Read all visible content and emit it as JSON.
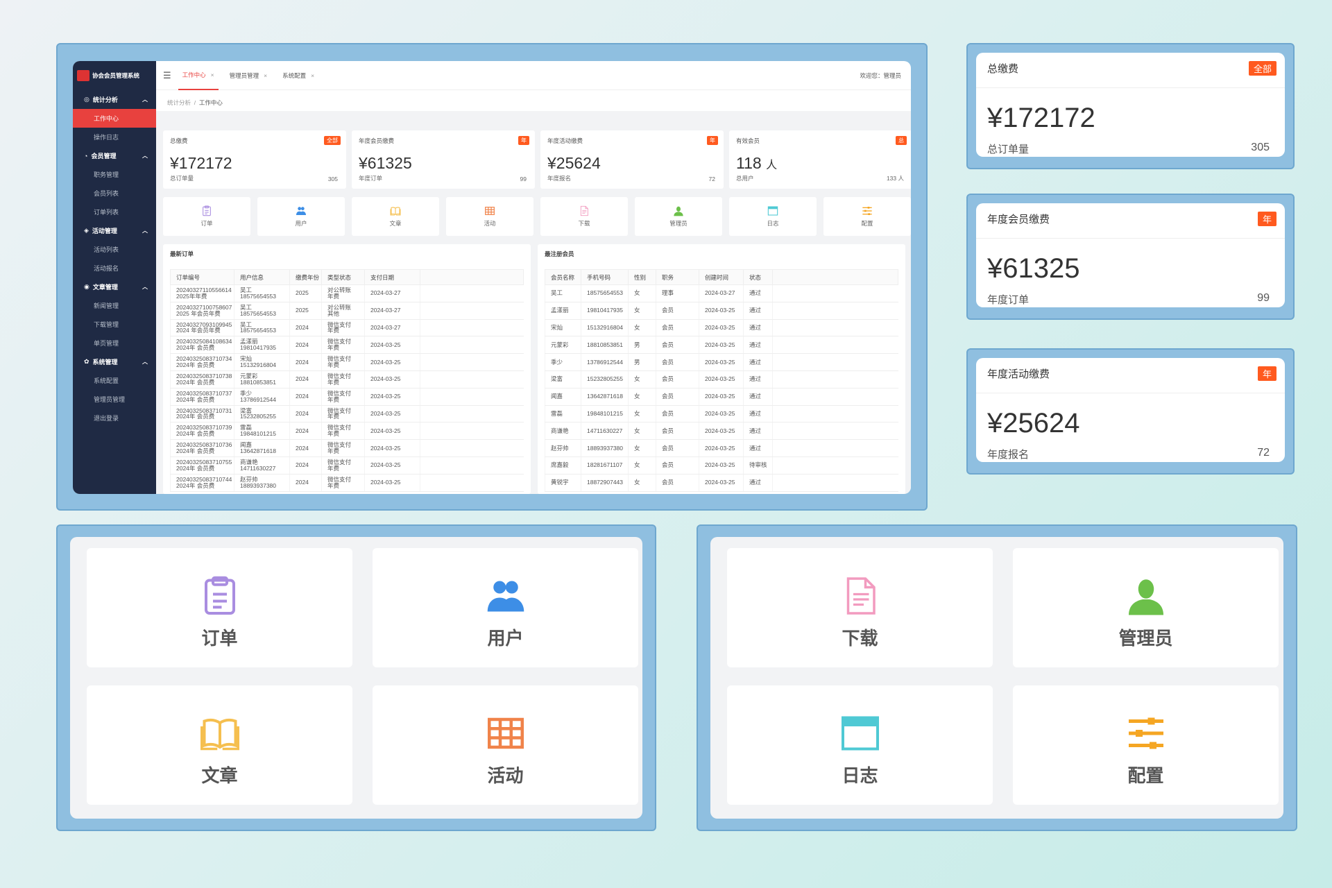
{
  "app": {
    "title": "协会会员管理系统"
  },
  "sidebar": {
    "groups": [
      {
        "label": "统计分析",
        "items": [
          {
            "label": "工作中心",
            "active": true
          },
          {
            "label": "操作日志"
          }
        ]
      },
      {
        "label": "会员管理",
        "items": [
          {
            "label": "职务管理"
          },
          {
            "label": "会员列表"
          },
          {
            "label": "订单列表"
          }
        ]
      },
      {
        "label": "活动管理",
        "items": [
          {
            "label": "活动列表"
          },
          {
            "label": "活动报名"
          }
        ]
      },
      {
        "label": "文章管理",
        "items": [
          {
            "label": "新闻管理"
          },
          {
            "label": "下载管理"
          },
          {
            "label": "单页管理"
          }
        ]
      },
      {
        "label": "系统管理",
        "items": [
          {
            "label": "系统配置"
          },
          {
            "label": "管理员管理"
          },
          {
            "label": "退出登录"
          }
        ]
      }
    ]
  },
  "tabs": [
    {
      "label": "工作中心",
      "active": true
    },
    {
      "label": "管理员管理"
    },
    {
      "label": "系统配置"
    }
  ],
  "header": {
    "welcome": "欢迎您：管理员"
  },
  "breadcrumb": {
    "parent": "统计分析",
    "separator": "/",
    "current": "工作中心"
  },
  "stats": [
    {
      "title": "总缴费",
      "badge": "全部",
      "value": "¥172172",
      "sub_label": "总订单量",
      "sub_value": "305"
    },
    {
      "title": "年度会员缴费",
      "badge": "年",
      "value": "¥61325",
      "sub_label": "年度订单",
      "sub_value": "99"
    },
    {
      "title": "年度活动缴费",
      "badge": "年",
      "value": "¥25624",
      "sub_label": "年度报名",
      "sub_value": "72"
    },
    {
      "title": "有效会员",
      "badge": "总",
      "value": "118",
      "value_unit": "人",
      "sub_label": "总用户",
      "sub_value": "133 人"
    }
  ],
  "quick_links": [
    {
      "label": "订单",
      "icon": "clipboard-icon",
      "color": "#a98de0"
    },
    {
      "label": "用户",
      "icon": "users-icon",
      "color": "#3d8ee6"
    },
    {
      "label": "文章",
      "icon": "book-icon",
      "color": "#f5bf4f"
    },
    {
      "label": "活动",
      "icon": "grid-icon",
      "color": "#f0834a"
    },
    {
      "label": "下载",
      "icon": "document-icon",
      "color": "#f29bbf"
    },
    {
      "label": "管理员",
      "icon": "person-icon",
      "color": "#6cc04a"
    },
    {
      "label": "日志",
      "icon": "window-icon",
      "color": "#4fc9d4"
    },
    {
      "label": "配置",
      "icon": "sliders-icon",
      "color": "#f5a623"
    }
  ],
  "orders": {
    "title": "最新订单",
    "columns": [
      "订单编号",
      "用户信息",
      "缴费年份",
      "类型状态",
      "支付日期"
    ],
    "rows": [
      {
        "id": "20240327110556614",
        "id_sub": "2025年年费",
        "user": "吴工",
        "phone": "18575654553",
        "year": "2025",
        "type": "对公转账",
        "type_sub": "年费",
        "date": "2024-03-27"
      },
      {
        "id": "20240327100758607",
        "id_sub": "2025 年会员年费",
        "user": "吴工",
        "phone": "18575654553",
        "year": "2025",
        "type": "对公转账",
        "type_sub": "其他",
        "date": "2024-03-27"
      },
      {
        "id": "20240327093109945",
        "id_sub": "2024 年会员年费",
        "user": "吴工",
        "phone": "18575654553",
        "year": "2024",
        "type": "微信支付",
        "type_sub": "年费",
        "date": "2024-03-27"
      },
      {
        "id": "20240325084108634",
        "id_sub": "2024年 会员费",
        "user": "孟漾丽",
        "phone": "19810417935",
        "year": "2024",
        "type": "微信支付",
        "type_sub": "年费",
        "date": "2024-03-25"
      },
      {
        "id": "20240325083710734",
        "id_sub": "2024年 会员费",
        "user": "宋灿",
        "phone": "15132916804",
        "year": "2024",
        "type": "微信支付",
        "type_sub": "年费",
        "date": "2024-03-25"
      },
      {
        "id": "20240325083710738",
        "id_sub": "2024年 会员费",
        "user": "元蒙彩",
        "phone": "18810853851",
        "year": "2024",
        "type": "微信支付",
        "type_sub": "年费",
        "date": "2024-03-25"
      },
      {
        "id": "20240325083710737",
        "id_sub": "2024年 会员费",
        "user": "季少",
        "phone": "13786912544",
        "year": "2024",
        "type": "微信支付",
        "type_sub": "年费",
        "date": "2024-03-25"
      },
      {
        "id": "20240325083710731",
        "id_sub": "2024年 会员费",
        "user": "梁富",
        "phone": "15232805255",
        "year": "2024",
        "type": "微信支付",
        "type_sub": "年费",
        "date": "2024-03-25"
      },
      {
        "id": "20240325083710739",
        "id_sub": "2024年 会员费",
        "user": "雷磊",
        "phone": "19848101215",
        "year": "2024",
        "type": "微信支付",
        "type_sub": "年费",
        "date": "2024-03-25"
      },
      {
        "id": "20240325083710736",
        "id_sub": "2024年 会员费",
        "user": "闻嘉",
        "phone": "13642871618",
        "year": "2024",
        "type": "微信支付",
        "type_sub": "年费",
        "date": "2024-03-25"
      },
      {
        "id": "20240325083710755",
        "id_sub": "2024年 会员费",
        "user": "商谦艳",
        "phone": "14711630227",
        "year": "2024",
        "type": "微信支付",
        "type_sub": "年费",
        "date": "2024-03-25"
      },
      {
        "id": "20240325083710744",
        "id_sub": "2024年 会员费",
        "user": "赵芬帅",
        "phone": "18893937380",
        "year": "2024",
        "type": "微信支付",
        "type_sub": "年费",
        "date": "2024-03-25"
      }
    ]
  },
  "members": {
    "title": "最注册会员",
    "columns": [
      "会员名称",
      "手机号码",
      "性别",
      "职务",
      "创建时间",
      "状态"
    ],
    "rows": [
      {
        "name": "吴工",
        "phone": "18575654553",
        "gender": "女",
        "role": "理事",
        "created": "2024-03-27",
        "status": "通过"
      },
      {
        "name": "孟漾丽",
        "phone": "19810417935",
        "gender": "女",
        "role": "会员",
        "created": "2024-03-25",
        "status": "通过"
      },
      {
        "name": "宋灿",
        "phone": "15132916804",
        "gender": "女",
        "role": "会员",
        "created": "2024-03-25",
        "status": "通过"
      },
      {
        "name": "元蒙彩",
        "phone": "18810853851",
        "gender": "男",
        "role": "会员",
        "created": "2024-03-25",
        "status": "通过"
      },
      {
        "name": "季少",
        "phone": "13786912544",
        "gender": "男",
        "role": "会员",
        "created": "2024-03-25",
        "status": "通过"
      },
      {
        "name": "梁富",
        "phone": "15232805255",
        "gender": "女",
        "role": "会员",
        "created": "2024-03-25",
        "status": "通过"
      },
      {
        "name": "闻嘉",
        "phone": "13642871618",
        "gender": "女",
        "role": "会员",
        "created": "2024-03-25",
        "status": "通过"
      },
      {
        "name": "雷磊",
        "phone": "19848101215",
        "gender": "女",
        "role": "会员",
        "created": "2024-03-25",
        "status": "通过"
      },
      {
        "name": "商谦艳",
        "phone": "14711630227",
        "gender": "女",
        "role": "会员",
        "created": "2024-03-25",
        "status": "通过"
      },
      {
        "name": "赵芬帅",
        "phone": "18893937380",
        "gender": "女",
        "role": "会员",
        "created": "2024-03-25",
        "status": "通过"
      },
      {
        "name": "席嘉毅",
        "phone": "18281671107",
        "gender": "女",
        "role": "会员",
        "created": "2024-03-25",
        "status": "待审核"
      },
      {
        "name": "黄锐宇",
        "phone": "18872907443",
        "gender": "女",
        "role": "会员",
        "created": "2024-03-25",
        "status": "通过"
      }
    ]
  },
  "colors": {
    "accent": "#e8413e",
    "badge": "#ff5a1f",
    "sidebar": "#1f2a44",
    "frame": "#8fbfe0"
  }
}
